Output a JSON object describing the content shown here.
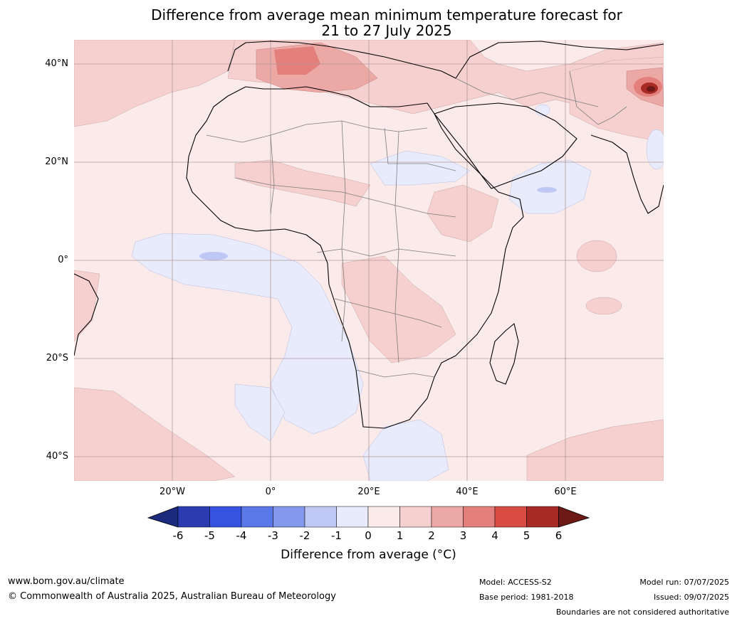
{
  "title": {
    "line1": "Difference from average mean minimum temperature forecast for",
    "line2": "21 to 27 July 2025"
  },
  "map": {
    "lat_ticks": [
      "40°N",
      "20°N",
      "0°",
      "20°S",
      "40°S"
    ],
    "lon_ticks": [
      "20°W",
      "0°",
      "20°E",
      "40°E",
      "60°E"
    ],
    "extent": {
      "lon_min": -40,
      "lon_max": 80,
      "lat_min": -45,
      "lat_max": 45
    },
    "grid": true,
    "background_anomaly_class": "0 to 1"
  },
  "colorbar": {
    "ticks": [
      "-6",
      "-5",
      "-4",
      "-3",
      "-2",
      "-1",
      "0",
      "1",
      "2",
      "3",
      "4",
      "5",
      "6"
    ],
    "colors": [
      "#1c2a7d",
      "#2a3cb0",
      "#3553e0",
      "#5a78e8",
      "#8499ec",
      "#bfc8f4",
      "#e8ebfb",
      "#fbeaea",
      "#f6d0cf",
      "#eca8a5",
      "#e4807c",
      "#d94c43",
      "#a82a25",
      "#6d1a16"
    ],
    "label": "Difference from average (°C)"
  },
  "footer": {
    "url": "www.bom.gov.au/climate",
    "copyright": "© Commonwealth of Australia 2025, Australian Bureau of Meteorology",
    "model": "Model: ACCESS-S2",
    "base_period": "Base period: 1981-2018",
    "model_run": "Model run: 07/07/2025",
    "issued": "Issued: 09/07/2025",
    "disclaimer": "Boundaries are not considered authoritative"
  }
}
